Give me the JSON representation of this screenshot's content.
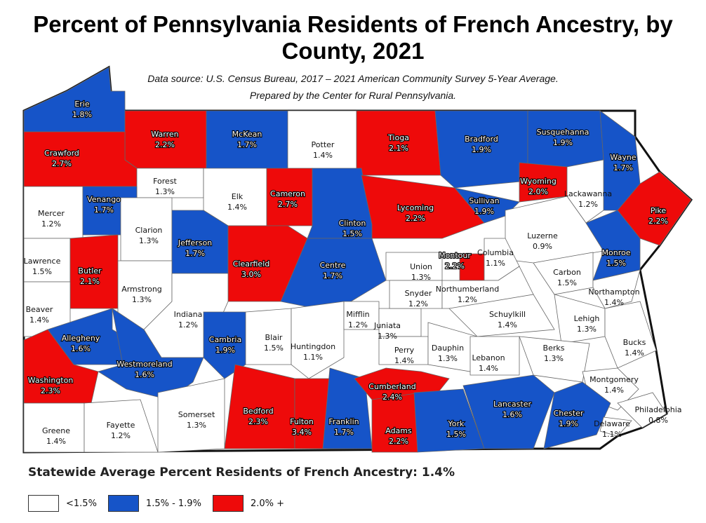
{
  "title": "Percent of Pennsylvania Residents of French Ancestry, by County, 2021",
  "source": "Data source: U.S. Census Bureau, 2017 – 2021 American Community Survey 5-Year Average.",
  "prepared": "Prepared by the Center for Rural Pennsylvania.",
  "statewide": "Statewide Average Percent Residents of French Ancestry: 1.4%",
  "legend": [
    {
      "label": "<1.5%",
      "color": "#ffffff",
      "key": "low"
    },
    {
      "label": "1.5% - 1.9%",
      "color": "#1654c8",
      "key": "mid"
    },
    {
      "label": "2.0% +",
      "color": "#ee0a0a",
      "key": "high"
    }
  ],
  "colors": {
    "low": "#ffffff",
    "mid": "#1654c8",
    "high": "#ee0a0a",
    "border": "#111111"
  },
  "counties": [
    {
      "name": "Erie",
      "value": "1.8%",
      "class": "mid"
    },
    {
      "name": "Warren",
      "value": "2.2%",
      "class": "high"
    },
    {
      "name": "McKean",
      "value": "1.7%",
      "class": "mid"
    },
    {
      "name": "Potter",
      "value": "1.4%",
      "class": "low"
    },
    {
      "name": "Tioga",
      "value": "2.1%",
      "class": "high"
    },
    {
      "name": "Bradford",
      "value": "1.9%",
      "class": "mid"
    },
    {
      "name": "Susquehanna",
      "value": "1.9%",
      "class": "mid"
    },
    {
      "name": "Wayne",
      "value": "1.7%",
      "class": "mid"
    },
    {
      "name": "Crawford",
      "value": "2.7%",
      "class": "high"
    },
    {
      "name": "Forest",
      "value": "1.3%",
      "class": "low"
    },
    {
      "name": "Elk",
      "value": "1.4%",
      "class": "low"
    },
    {
      "name": "Cameron",
      "value": "2.7%",
      "class": "high"
    },
    {
      "name": "Wyoming",
      "value": "2.0%",
      "class": "high"
    },
    {
      "name": "Lackawanna",
      "value": "1.2%",
      "class": "low"
    },
    {
      "name": "Pike",
      "value": "2.2%",
      "class": "high"
    },
    {
      "name": "Mercer",
      "value": "1.2%",
      "class": "low"
    },
    {
      "name": "Venango",
      "value": "1.7%",
      "class": "mid"
    },
    {
      "name": "Clarion",
      "value": "1.3%",
      "class": "low"
    },
    {
      "name": "Jefferson",
      "value": "1.7%",
      "class": "mid"
    },
    {
      "name": "Clearfield",
      "value": "3.0%",
      "class": "high"
    },
    {
      "name": "Clinton",
      "value": "1.5%",
      "class": "mid"
    },
    {
      "name": "Lycoming",
      "value": "2.2%",
      "class": "high"
    },
    {
      "name": "Sullivan",
      "value": "1.9%",
      "class": "mid"
    },
    {
      "name": "Luzerne",
      "value": "0.9%",
      "class": "low"
    },
    {
      "name": "Monroe",
      "value": "1.5%",
      "class": "mid"
    },
    {
      "name": "Lawrence",
      "value": "1.5%",
      "class": "low"
    },
    {
      "name": "Butler",
      "value": "2.1%",
      "class": "high"
    },
    {
      "name": "Armstrong",
      "value": "1.3%",
      "class": "low"
    },
    {
      "name": "Indiana",
      "value": "1.2%",
      "class": "low"
    },
    {
      "name": "Centre",
      "value": "1.7%",
      "class": "mid"
    },
    {
      "name": "Union",
      "value": "1.3%",
      "class": "low"
    },
    {
      "name": "Montour",
      "value": "2.2%",
      "class": "high"
    },
    {
      "name": "Columbia",
      "value": "1.1%",
      "class": "low"
    },
    {
      "name": "Carbon",
      "value": "1.5%",
      "class": "low"
    },
    {
      "name": "Northampton",
      "value": "1.4%",
      "class": "low"
    },
    {
      "name": "Beaver",
      "value": "1.4%",
      "class": "low"
    },
    {
      "name": "Allegheny",
      "value": "1.6%",
      "class": "mid"
    },
    {
      "name": "Westmoreland",
      "value": "1.6%",
      "class": "mid"
    },
    {
      "name": "Cambria",
      "value": "1.9%",
      "class": "mid"
    },
    {
      "name": "Blair",
      "value": "1.5%",
      "class": "low"
    },
    {
      "name": "Huntingdon",
      "value": "1.1%",
      "class": "low"
    },
    {
      "name": "Mifflin",
      "value": "1.2%",
      "class": "low"
    },
    {
      "name": "Juniata",
      "value": "1.3%",
      "class": "low"
    },
    {
      "name": "Snyder",
      "value": "1.2%",
      "class": "low"
    },
    {
      "name": "Northumberland",
      "value": "1.2%",
      "class": "low"
    },
    {
      "name": "Schuylkill",
      "value": "1.4%",
      "class": "low"
    },
    {
      "name": "Lehigh",
      "value": "1.3%",
      "class": "low"
    },
    {
      "name": "Bucks",
      "value": "1.4%",
      "class": "low"
    },
    {
      "name": "Washington",
      "value": "2.3%",
      "class": "high"
    },
    {
      "name": "Greene",
      "value": "1.4%",
      "class": "low"
    },
    {
      "name": "Fayette",
      "value": "1.2%",
      "class": "low"
    },
    {
      "name": "Somerset",
      "value": "1.3%",
      "class": "low"
    },
    {
      "name": "Bedford",
      "value": "2.3%",
      "class": "high"
    },
    {
      "name": "Fulton",
      "value": "3.4%",
      "class": "high"
    },
    {
      "name": "Franklin",
      "value": "1.7%",
      "class": "mid"
    },
    {
      "name": "Cumberland",
      "value": "2.4%",
      "class": "high"
    },
    {
      "name": "Perry",
      "value": "1.4%",
      "class": "low"
    },
    {
      "name": "Dauphin",
      "value": "1.3%",
      "class": "low"
    },
    {
      "name": "Lebanon",
      "value": "1.4%",
      "class": "low"
    },
    {
      "name": "Berks",
      "value": "1.3%",
      "class": "low"
    },
    {
      "name": "Montgomery",
      "value": "1.4%",
      "class": "low"
    },
    {
      "name": "Philadelphia",
      "value": "0.8%",
      "class": "low"
    },
    {
      "name": "Adams",
      "value": "2.2%",
      "class": "high"
    },
    {
      "name": "York",
      "value": "1.5%",
      "class": "mid"
    },
    {
      "name": "Lancaster",
      "value": "1.6%",
      "class": "mid"
    },
    {
      "name": "Chester",
      "value": "1.9%",
      "class": "mid"
    },
    {
      "name": "Delaware",
      "value": "1.1%",
      "class": "low"
    }
  ]
}
